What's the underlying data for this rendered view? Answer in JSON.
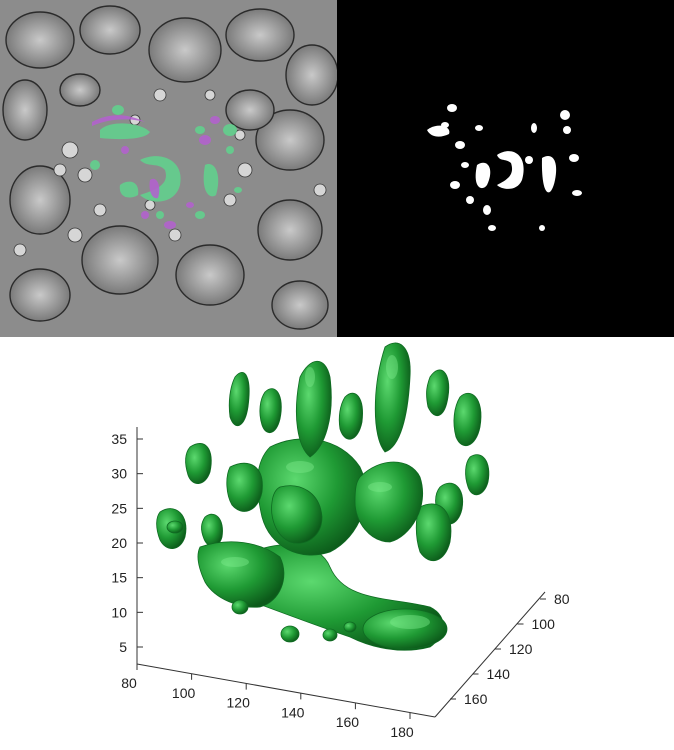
{
  "panels": {
    "em_image": {
      "icon": "electron-micrograph",
      "overlay_colors": [
        "#5fd38d",
        "#b45fd0"
      ]
    },
    "mask_image": {
      "icon": "binary-segmentation-mask",
      "background": "#000000",
      "foreground": "#ffffff"
    },
    "render_3d": {
      "icon": "3d-surface-render",
      "surface_color": "#1f9a34"
    }
  },
  "chart_data": {
    "type": "surface3d",
    "title": "",
    "axes": {
      "z": {
        "ticks": [
          "5",
          "10",
          "15",
          "20",
          "25",
          "30",
          "35"
        ]
      },
      "x": {
        "ticks": [
          "80",
          "100",
          "120",
          "140",
          "160",
          "180"
        ]
      },
      "y": {
        "ticks": [
          "80",
          "100",
          "120",
          "140",
          "160"
        ]
      }
    },
    "color": "#1f9a34",
    "grid": false
  }
}
